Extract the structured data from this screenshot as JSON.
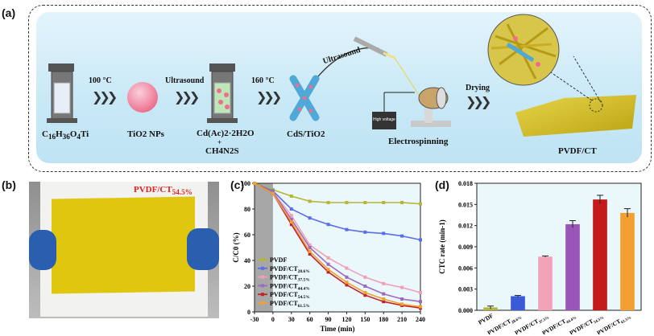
{
  "panel_labels": {
    "a": "(a)",
    "b": "(b)",
    "c": "(c)",
    "d": "(d)"
  },
  "scheme": {
    "step1_label": "C16H36O4Ti",
    "step1_main": "C",
    "step1_subs": [
      "16",
      "36",
      "4"
    ],
    "temp1": "100 °C",
    "step2_label": "TiO2 NPs",
    "ultrasound1": "Ultrasound",
    "step3_line1": "Cd(Ac)2·2H2O",
    "step3_plus": "+",
    "step3_line2": "CH4N2S",
    "temp2": "160 °C",
    "step4_label": "CdS/TiO2",
    "ultrasound2": "Ultrasound",
    "voltage_label": "High voltage",
    "step5_label": "Electrospinning",
    "drying": "Drying",
    "step6_label": "PVDF/CT"
  },
  "photo": {
    "label": "PVDF/CT",
    "subscript": "54.5%"
  },
  "chart_data": [
    {
      "type": "line",
      "panel": "c",
      "xlabel": "Time (min)",
      "ylabel": "C/C0 (%)",
      "xlim": [
        -30,
        240
      ],
      "ylim": [
        0,
        100
      ],
      "xticks": [
        -30,
        0,
        30,
        60,
        90,
        120,
        150,
        180,
        210,
        240
      ],
      "yticks": [
        0,
        20,
        40,
        60,
        80,
        100
      ],
      "dark_region": [
        -30,
        0
      ],
      "legend_position": "center-left",
      "x": [
        -30,
        0,
        30,
        60,
        90,
        120,
        150,
        180,
        210,
        240
      ],
      "series": [
        {
          "name": "PVDF",
          "color": "#b5b53a",
          "values": [
            100,
            95,
            90,
            86,
            85,
            85,
            85,
            85,
            85,
            84
          ]
        },
        {
          "name": "PVDF/CT28.6%",
          "color": "#5b6de8",
          "values": [
            100,
            94,
            80,
            73,
            68,
            64,
            62,
            61,
            59,
            56
          ]
        },
        {
          "name": "PVDF/CT37.5%",
          "color": "#f2a0b6",
          "values": [
            100,
            93,
            75,
            52,
            42,
            34,
            27,
            22,
            19,
            15
          ]
        },
        {
          "name": "PVDF/CT44.4%",
          "color": "#9a6cc0",
          "values": [
            100,
            93,
            72,
            50,
            37,
            27,
            20,
            14,
            10,
            8
          ]
        },
        {
          "name": "PVDF/CT54.5%",
          "color": "#c02424",
          "values": [
            100,
            92,
            68,
            45,
            31,
            21,
            13,
            8,
            5,
            3
          ]
        },
        {
          "name": "PVDF/CT61.5%",
          "color": "#f2a033",
          "values": [
            100,
            92,
            70,
            47,
            33,
            23,
            15,
            10,
            6,
            4
          ]
        }
      ]
    },
    {
      "type": "bar",
      "panel": "d",
      "ylabel": "CTC rate (min-1)",
      "ylim": [
        0,
        0.018
      ],
      "yticks": [
        "0.000",
        "0.003",
        "0.006",
        "0.009",
        "0.012",
        "0.015",
        "0.018"
      ],
      "categories": [
        "PVDF",
        "PVDF/CT28.6%",
        "PVDF/CT37.5%",
        "PVDF/CT44.4%",
        "PVDF/CT54.5%",
        "PVDF/CT61.5%"
      ],
      "values": [
        0.0004,
        0.002,
        0.0076,
        0.0122,
        0.0157,
        0.0138
      ],
      "errors": [
        0.0002,
        0.0001,
        0.0001,
        0.0005,
        0.0006,
        0.0006
      ],
      "colors": [
        "#b5b53a",
        "#3b5bd6",
        "#f4a3b6",
        "#9a55b8",
        "#c41a1a",
        "#f2a033"
      ]
    }
  ],
  "colors": {
    "panel_bg": "#c8e8f6",
    "photo_yellow": "#e1c610",
    "glove_blue": "#2a5fb0",
    "label_red": "#e02020"
  }
}
